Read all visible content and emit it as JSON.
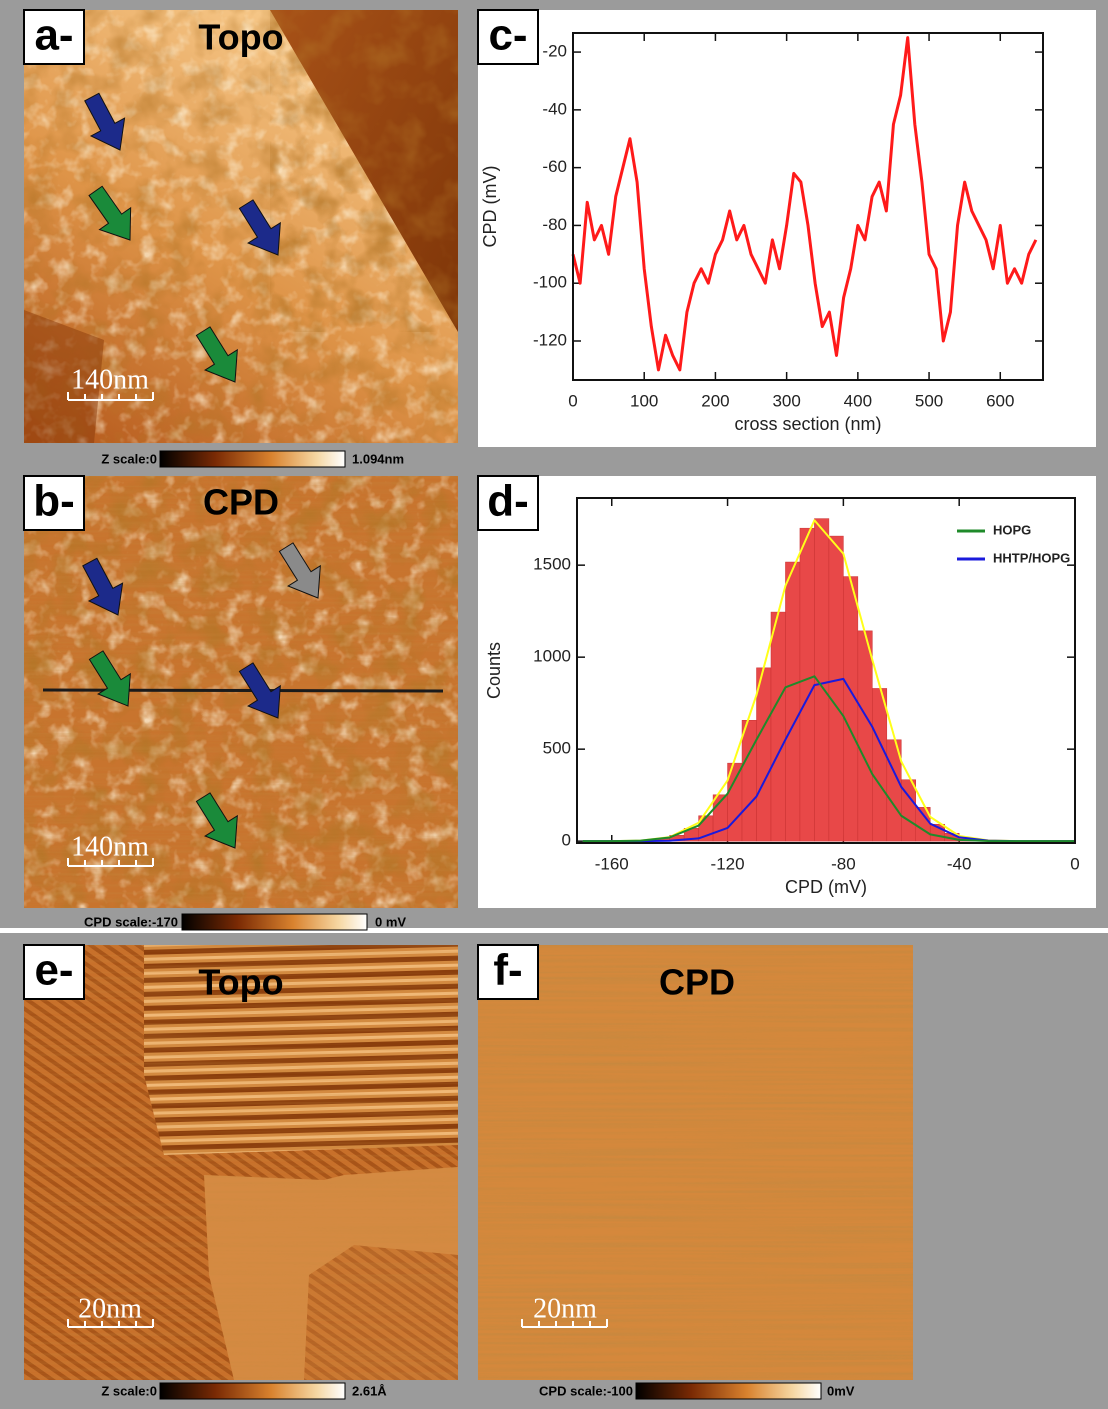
{
  "panels": [
    {
      "label": "a-",
      "title": "Topo",
      "scale_bar": "140nm",
      "colorbar_min": "Z scale:0",
      "colorbar_max": "1.094nm"
    },
    {
      "label": "b-",
      "title": "CPD",
      "scale_bar": "140nm",
      "colorbar_min": "CPD scale:-170",
      "colorbar_max": "0 mV"
    },
    {
      "label": "e-",
      "title": "Topo",
      "scale_bar": "20nm",
      "colorbar_min": "Z scale:0",
      "colorbar_max": "2.61Å"
    },
    {
      "label": "f-",
      "title": "CPD",
      "scale_bar": "20nm",
      "colorbar_min": "CPD scale:-100",
      "colorbar_max": "0mV"
    }
  ],
  "chart_data": [
    {
      "type": "line",
      "panel_label": "c-",
      "x_label": "cross section (nm)",
      "y_label": "CPD (mV)",
      "x": [
        0,
        10,
        20,
        30,
        40,
        50,
        60,
        70,
        80,
        90,
        100,
        110,
        120,
        130,
        140,
        150,
        160,
        170,
        180,
        190,
        200,
        210,
        220,
        230,
        240,
        250,
        260,
        270,
        280,
        290,
        300,
        310,
        320,
        330,
        340,
        350,
        360,
        370,
        380,
        390,
        400,
        410,
        420,
        430,
        440,
        450,
        460,
        470,
        480,
        490,
        500,
        510,
        520,
        530,
        540,
        550,
        560,
        570,
        580,
        590,
        600,
        610,
        620,
        630,
        640,
        650
      ],
      "series": [
        {
          "color": "#ff1a1a",
          "values": [
            -90,
            -100,
            -72,
            -85,
            -80,
            -90,
            -70,
            -60,
            -50,
            -65,
            -95,
            -115,
            -130,
            -118,
            -125,
            -130,
            -110,
            -100,
            -95,
            -100,
            -90,
            -85,
            -75,
            -85,
            -80,
            -90,
            -95,
            -100,
            -85,
            -95,
            -80,
            -62,
            -65,
            -80,
            -100,
            -115,
            -110,
            -125,
            -105,
            -95,
            -80,
            -85,
            -70,
            -65,
            -75,
            -45,
            -35,
            -15,
            -45,
            -65,
            -90,
            -95,
            -120,
            -110,
            -80,
            -65,
            -75,
            -80,
            -85,
            -95,
            -80,
            -100,
            -95,
            -100,
            -90,
            -85
          ]
        }
      ],
      "xlim": [
        0,
        660
      ],
      "ylim": [
        -133.5,
        -13.4
      ],
      "xticks": [
        0,
        100,
        200,
        300,
        400,
        500,
        600
      ],
      "yticks": [
        -120,
        -100,
        -80,
        -60,
        -40,
        -20
      ]
    },
    {
      "type": "histogram",
      "panel_label": "d-",
      "x_label": "CPD (mV)",
      "y_label": "Counts",
      "bins": [
        -170,
        -165,
        -160,
        -155,
        -150,
        -145,
        -140,
        -135,
        -130,
        -125,
        -120,
        -115,
        -110,
        -105,
        -100,
        -95,
        -90,
        -85,
        -80,
        -75,
        -70,
        -65,
        -60,
        -55,
        -50,
        -45,
        -40,
        -35,
        -30,
        -25,
        -20,
        -15,
        -10,
        -5,
        0
      ],
      "values": [
        0,
        0,
        1,
        2,
        6,
        14,
        32,
        70,
        138,
        252,
        424,
        657,
        942,
        1245,
        1517,
        1701,
        1753,
        1658,
        1438,
        1143,
        830,
        551,
        334,
        184,
        92,
        43,
        17,
        6,
        2,
        1,
        0,
        0,
        0,
        0
      ],
      "color": "#e84848",
      "series": [
        {
          "name": "HOPG",
          "color": "#1f8a2a",
          "x": [
            -170,
            -160,
            -150,
            -140,
            -130,
            -120,
            -110,
            -100,
            -90,
            -80,
            -70,
            -60,
            -50,
            -40,
            -30,
            -20,
            -10,
            0
          ],
          "values": [
            0,
            0,
            3,
            20,
            85,
            258,
            552,
            836,
            896,
            680,
            364,
            138,
            37,
            7,
            1,
            0,
            0,
            0
          ]
        },
        {
          "name": "HHTP/HOPG",
          "color": "#1a1adc",
          "x": [
            -170,
            -160,
            -150,
            -140,
            -130,
            -120,
            -110,
            -100,
            -90,
            -80,
            -70,
            -60,
            -50,
            -40,
            -30,
            -20,
            -10,
            0
          ],
          "values": [
            0,
            0,
            0,
            2,
            15,
            72,
            243,
            552,
            848,
            882,
            621,
            295,
            95,
            21,
            3,
            0,
            0,
            0
          ]
        },
        {
          "color": "#ffff1a",
          "x": [
            -170,
            -160,
            -150,
            -140,
            -130,
            -120,
            -110,
            -100,
            -90,
            -80,
            -70,
            -60,
            -50,
            -40,
            -30,
            -20,
            -10,
            0
          ],
          "values": [
            0,
            0,
            3,
            22,
            100,
            330,
            795,
            1388,
            1744,
            1562,
            985,
            433,
            132,
            28,
            4,
            0,
            0,
            0
          ]
        }
      ],
      "legend": "upper right",
      "xlim": [
        -172,
        0
      ],
      "ylim": [
        -10,
        1865
      ],
      "xticks": [
        -160,
        -120,
        -80,
        -40,
        0
      ],
      "yticks": [
        0,
        500,
        1000,
        1500
      ]
    }
  ]
}
